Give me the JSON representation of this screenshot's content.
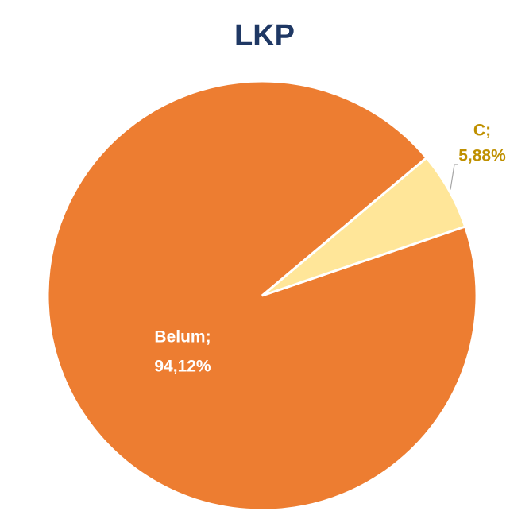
{
  "chart_data": {
    "type": "pie",
    "title": "LKP",
    "categories": [
      "Belum;",
      "C;"
    ],
    "values": [
      94.12,
      5.88
    ],
    "value_labels": [
      "94,12%",
      "5,88%"
    ],
    "colors": [
      "#ed7d31",
      "#ffe699"
    ]
  }
}
